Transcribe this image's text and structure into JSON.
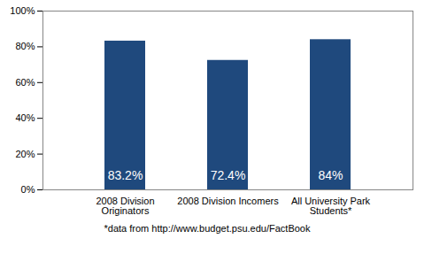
{
  "chart_data": {
    "type": "bar",
    "categories": [
      "2008 Division Originators",
      "2008 Division Incomers",
      "All University Park Students*"
    ],
    "values": [
      83.2,
      72.4,
      84
    ],
    "value_labels": [
      "83.2%",
      "72.4%",
      "84%"
    ],
    "data_labels": true,
    "color": "#1f497d",
    "ylim": [
      0,
      100
    ],
    "yticks": [
      {
        "value": 0,
        "label": "0%"
      },
      {
        "value": 20,
        "label": "20%"
      },
      {
        "value": 40,
        "label": "40%"
      },
      {
        "value": 60,
        "label": "60%"
      },
      {
        "value": 80,
        "label": "80%"
      },
      {
        "value": 100,
        "label": "100%"
      }
    ],
    "grid": false,
    "caption": "*data from http://www.budget.psu.edu/FactBook"
  }
}
